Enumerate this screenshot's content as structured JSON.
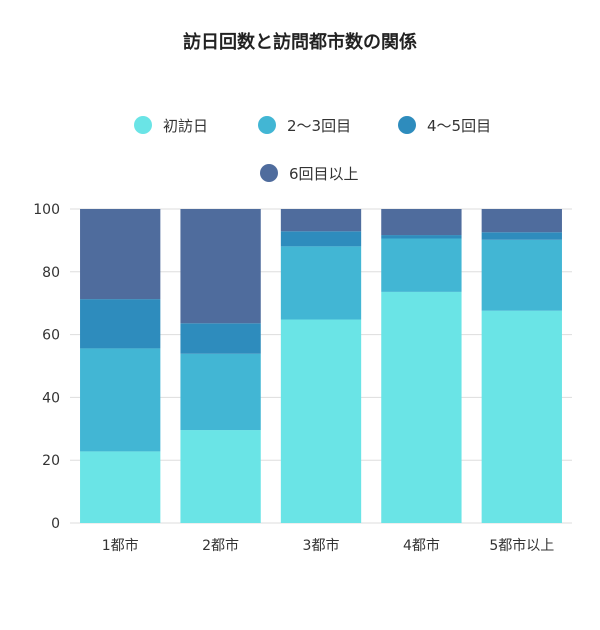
{
  "chart_data": {
    "type": "bar",
    "stacked": true,
    "title": "訪日回数と訪問都市数の関係",
    "xlabel": "",
    "ylabel": "",
    "ylim": [
      0,
      100
    ],
    "yticks": [
      0,
      20,
      40,
      60,
      80,
      100
    ],
    "grid": true,
    "legend_position": "top",
    "categories": [
      "1都市",
      "2都市",
      "3都市",
      "4都市",
      "5都市以上"
    ],
    "series": [
      {
        "name": "初訪日",
        "color": "#6ae4e6",
        "values": [
          22.8,
          29.6,
          64.8,
          73.6,
          67.6
        ]
      },
      {
        "name": "2〜3回目",
        "color": "#42b6d4",
        "values": [
          32.8,
          24.3,
          23.3,
          17.0,
          22.6
        ]
      },
      {
        "name": "4〜5回目",
        "color": "#2e8cbd",
        "values": [
          15.7,
          9.7,
          4.8,
          1.1,
          2.4
        ]
      },
      {
        "name": "6回目以上",
        "color": "#4f6c9d",
        "values": [
          28.7,
          36.4,
          7.1,
          8.3,
          7.4
        ]
      }
    ]
  }
}
